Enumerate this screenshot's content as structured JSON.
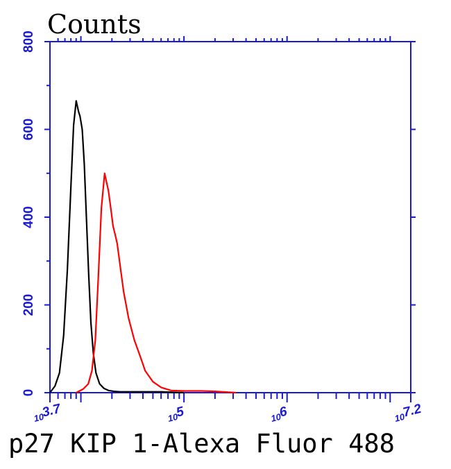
{
  "chart_data": {
    "type": "line",
    "ylabel": "Counts",
    "xlabel": "p27 KIP 1-Alexa Fluor 488",
    "x_scale": "log",
    "xlim": [
      5012,
      15849000
    ],
    "ylim": [
      0,
      800
    ],
    "yticks": [
      "0",
      "200",
      "400",
      "600",
      "800"
    ],
    "xticks": [
      {
        "value": 5012,
        "base": "10",
        "exp": "3.7"
      },
      {
        "value": 100000,
        "base": "10",
        "exp": "5"
      },
      {
        "value": 1000000,
        "base": "10",
        "exp": "6"
      },
      {
        "value": 15849000,
        "base": "10",
        "exp": "7.2"
      }
    ],
    "axis_color": "#1a1ad0",
    "grid": false,
    "series": [
      {
        "color": "#000000",
        "x": [
          5012,
          5600,
          6200,
          6800,
          7400,
          8000,
          8500,
          9000,
          9500,
          9800,
          10300,
          10800,
          11300,
          11900,
          12500,
          13200,
          14000,
          15200,
          16700,
          18500,
          21000,
          24000,
          30000,
          40000,
          60000,
          100000
        ],
        "y": [
          0,
          15,
          45,
          130,
          280,
          470,
          610,
          665,
          640,
          630,
          600,
          520,
          400,
          270,
          160,
          90,
          45,
          20,
          10,
          5,
          3,
          2,
          2,
          2,
          2,
          0
        ]
      },
      {
        "color": "#ff0000",
        "x": [
          9000,
          10500,
          11800,
          12800,
          13800,
          14800,
          15800,
          17000,
          18500,
          19500,
          20500,
          21500,
          22500,
          24000,
          26000,
          29000,
          33000,
          38000,
          42000,
          50000,
          60000,
          75000,
          100000,
          150000,
          200000,
          320000
        ],
        "y": [
          0,
          8,
          20,
          50,
          120,
          270,
          420,
          500,
          460,
          420,
          380,
          360,
          340,
          290,
          230,
          170,
          120,
          80,
          50,
          25,
          12,
          5,
          4,
          4,
          3,
          0
        ]
      }
    ]
  }
}
